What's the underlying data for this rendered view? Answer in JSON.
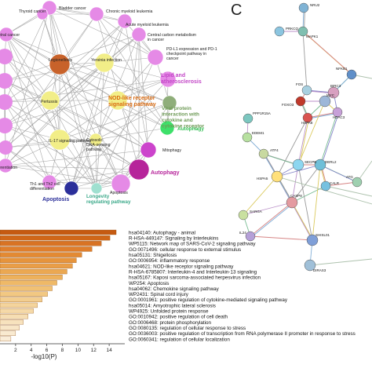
{
  "panels": {
    "c_letter": "C"
  },
  "network_a": {
    "nodes": [
      {
        "label": "Bladder cancer",
        "color": "#e58ae6"
      },
      {
        "label": "Chronic myeloid leukemia",
        "color": "#e58ae6"
      },
      {
        "label": "Thyroid cancer",
        "color": "#e58ae6"
      },
      {
        "label": "Acute myeloid leukemia",
        "color": "#e58ae6"
      },
      {
        "label": "Central carbon metabolism in cancer",
        "color": "#e58ae6"
      },
      {
        "label": "etral cancer",
        "color": "#e58ae6"
      },
      {
        "label": "Legionellosis",
        "color": "#c8622a"
      },
      {
        "label": "PD-L1 expression and PD-1 checkpoint pathway in cancer",
        "color": "#e58ae6"
      },
      {
        "label": "Yersinia infection",
        "color": "#f2ee88"
      },
      {
        "label": "Lipid and atherosclerosis",
        "color": "#e58ae6"
      },
      {
        "label": "Pertussis",
        "color": "#f2ee88"
      },
      {
        "label": "NOD-like receptor signaling pathway",
        "color": "#f2ee88"
      },
      {
        "label": "Viral protein interaction with cytokine and cytokine receptor",
        "color": "#8fae7a"
      },
      {
        "label": "Autophagy",
        "color": "#3ee06a"
      },
      {
        "label": "IL-17 signaling pathway",
        "color": "#f2ee88"
      },
      {
        "label": "Cytosolic DNA-sensing pathway",
        "color": "#f2ee88"
      },
      {
        "label": "Mitophagy",
        "color": "#cc44cc"
      },
      {
        "label": "Autophagy",
        "color": "#b6249a"
      },
      {
        "label": "ifferentiation",
        "color": "#e58ae6"
      },
      {
        "label": "Th1 and Th2 cell differentiation",
        "color": "#e58ae6"
      },
      {
        "label": "Apoptosis",
        "color": "#2b2f9a"
      },
      {
        "label": "Longevity regulating pathway",
        "color": "#9fe0d0"
      },
      {
        "label": "Apoptosis",
        "color": "#e58ae6"
      }
    ]
  },
  "ppi_c": {
    "labels": [
      "NRU2",
      "PRKCQ",
      "MAPK1",
      "NFKB1",
      "FOS",
      "BIRC3",
      "FOXO3",
      "MYC",
      "HDAC3",
      "HSPA8",
      "PPP1R15A",
      "EDEM1",
      "ATF4",
      "HSPA5",
      "SECPB",
      "DERL2",
      "CASP8",
      "CALR",
      "ATG",
      "SARGA",
      "IL24",
      "SHISL01",
      "DIRAS3"
    ]
  },
  "chart_data": {
    "type": "bar",
    "orientation": "horizontal",
    "xlabel": "-log10(P)",
    "xticks": [
      2,
      4,
      6,
      8,
      10,
      12,
      14
    ],
    "xlim": [
      0,
      16
    ],
    "categories": [
      "hsa04140: Autophagy - animal",
      "R-HSA-449147: Signaling by Interleukins",
      "WP5115: Network map of SARS-CoV-2 signaling pathway",
      "GO:0071496: cellular response to external stimulus",
      "hsa05131: Shigellosis",
      "GO:0006954: inflammatory response",
      "hsa04621: NOD-like receptor signaling pathway",
      "R-HSA-6785807: Interleukin-4 and Interleukin-13 signaling",
      "hsa05167: Kaposi sarcoma-associated herpesvirus infection",
      "WP254: Apoptosis",
      "hsa04062: Chemokine signaling pathway",
      "WP2431: Spinal cord injury",
      "GO:0001961: positive regulation of cytokine-mediated signaling pathway",
      "hsa05014: Amyotrophic lateral sclerosis",
      "WP4925: Unfolded protein response",
      "GO:0010942: positive regulation of cell death",
      "GO:0006468: protein phosphorylation",
      "GO:0080135: regulation of cellular response to stress",
      "GO:0036003: positive regulation of transcription from RNA polymerase II promoter in response to stress",
      "GO:0060341: regulation of cellular localization"
    ],
    "values": [
      14.9,
      14.1,
      13.0,
      11.8,
      10.5,
      9.8,
      9.3,
      8.6,
      8.0,
      7.3,
      6.7,
      6.1,
      5.4,
      4.8,
      4.3,
      3.6,
      3.0,
      2.5,
      2.0,
      1.4
    ],
    "colors": [
      "#c55a11",
      "#d06718",
      "#d87324",
      "#df7e2c",
      "#e38a33",
      "#e6943c",
      "#e99e48",
      "#eba852",
      "#edb15c",
      "#efb967",
      "#f1c174",
      "#f2c882",
      "#f3ce8f",
      "#f4d49c",
      "#f5d9a8",
      "#f6deb3",
      "#f7e2bd",
      "#f8e6c7",
      "#f9ead0",
      "#faedd8"
    ]
  }
}
